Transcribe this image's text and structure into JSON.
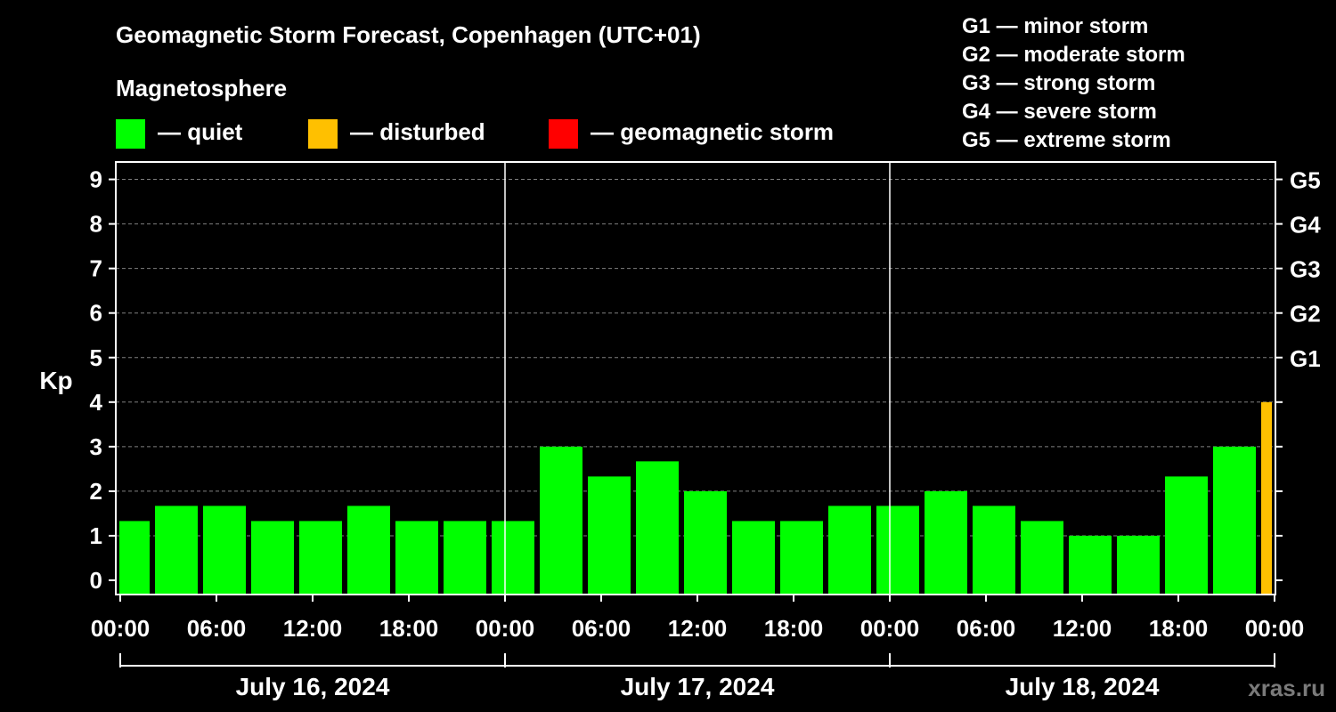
{
  "chart_data": {
    "type": "bar",
    "title": "Geomagnetic Storm Forecast, Copenhagen (UTC+01)",
    "subtitle": "Magnetosphere",
    "ylabel": "Kp",
    "ylim": [
      0,
      9
    ],
    "y_ticks": [
      "0",
      "1",
      "2",
      "3",
      "4",
      "5",
      "6",
      "7",
      "8",
      "9"
    ],
    "g_scale_ticks": [
      {
        "kp": 5,
        "label": "G1"
      },
      {
        "kp": 6,
        "label": "G2"
      },
      {
        "kp": 7,
        "label": "G3"
      },
      {
        "kp": 8,
        "label": "G4"
      },
      {
        "kp": 9,
        "label": "G5"
      }
    ],
    "x_ticks": [
      "00:00",
      "06:00",
      "12:00",
      "18:00",
      "00:00",
      "06:00",
      "12:00",
      "18:00",
      "00:00",
      "06:00",
      "12:00",
      "18:00",
      "00:00"
    ],
    "days": [
      "July 16, 2024",
      "July 17, 2024",
      "July 18, 2024"
    ],
    "legend": [
      {
        "label": "— quiet",
        "color": "#00ff00"
      },
      {
        "label": "— disturbed",
        "color": "#ffc000"
      },
      {
        "label": "— geomagnetic storm",
        "color": "#ff0000"
      }
    ],
    "storm_scale": [
      "G1 — minor storm",
      "G2 — moderate storm",
      "G3 — strong storm",
      "G4 — severe storm",
      "G5 — extreme storm"
    ],
    "start_hour": -1,
    "interval_hours": 3,
    "values": [
      1.33,
      1.67,
      1.67,
      1.33,
      1.33,
      1.67,
      1.33,
      1.33,
      1.33,
      3,
      2.33,
      2.67,
      2,
      1.33,
      1.33,
      1.67,
      1.67,
      2,
      1.67,
      1.33,
      1,
      1,
      2.33,
      3,
      4
    ],
    "grid": "dashed horizontal lines at G levels; solid vertical day separators",
    "watermark": "xras.ru",
    "colors": {
      "quiet": "#00ff00",
      "disturbed": "#ffc000",
      "storm": "#ff0000",
      "background": "#000000",
      "axis": "#ffffff"
    }
  }
}
